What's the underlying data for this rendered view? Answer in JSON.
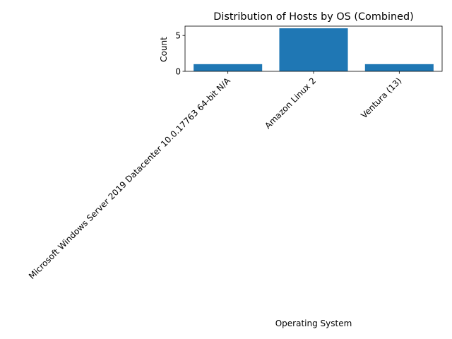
{
  "chart_data": {
    "type": "bar",
    "title": "Distribution of Hosts by OS (Combined)",
    "xlabel": "Operating System",
    "ylabel": "Count",
    "categories": [
      "Microsoft Windows Server 2019 Datacenter 10.0.17763 64-bit N/A",
      "Amazon Linux 2",
      "Ventura (13)"
    ],
    "values": [
      1,
      6,
      1
    ],
    "ylim": [
      0,
      6.3
    ],
    "yticks": [
      0,
      5
    ],
    "grid": false,
    "legend": "none",
    "bar_color": "#1f77b4"
  }
}
